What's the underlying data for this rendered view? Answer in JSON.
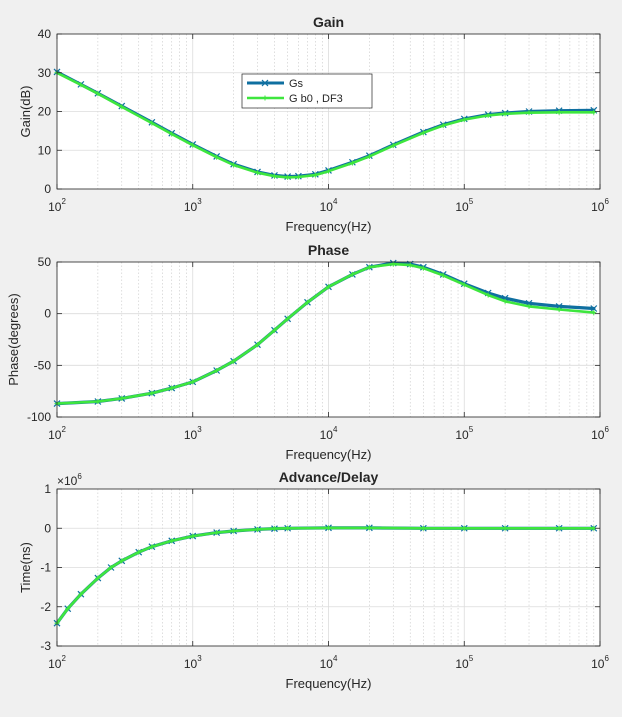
{
  "chart_data": [
    {
      "type": "line",
      "title": "Gain",
      "xlabel": "Frequency(Hz)",
      "ylabel": "Gain(dB)",
      "x_scale": "log",
      "xlim": [
        100,
        1000000
      ],
      "ylim": [
        0,
        40
      ],
      "yticks": [
        0,
        10,
        20,
        30,
        40
      ],
      "ytick_labels": [
        "0",
        "10",
        "20",
        "30",
        "40"
      ],
      "y_multiplier": "",
      "xtick_labels": [
        {
          "base": "10",
          "exp": "2"
        },
        {
          "base": "10",
          "exp": "3"
        },
        {
          "base": "10",
          "exp": "4"
        },
        {
          "base": "10",
          "exp": "5"
        },
        {
          "base": "10",
          "exp": "6"
        }
      ],
      "grid": true,
      "legend": "upper-center",
      "series": [
        {
          "name": "Gs",
          "color": "#0f6fa0",
          "marker": "x",
          "x": [
            100,
            150,
            200,
            300,
            500,
            700,
            1000,
            1500,
            2000,
            3000,
            4000,
            5000,
            6000,
            8000,
            10000,
            15000,
            20000,
            30000,
            50000,
            70000,
            100000,
            150000,
            200000,
            300000,
            500000,
            900000
          ],
          "y": [
            30.2,
            27.0,
            24.7,
            21.4,
            17.2,
            14.4,
            11.5,
            8.4,
            6.4,
            4.4,
            3.5,
            3.2,
            3.3,
            3.8,
            4.8,
            6.9,
            8.6,
            11.4,
            14.7,
            16.6,
            18.1,
            19.2,
            19.6,
            20.0,
            20.2,
            20.3
          ]
        },
        {
          "name": "G b0 , DF3",
          "color": "#3ee63e",
          "marker": "*",
          "x": [
            100,
            150,
            200,
            300,
            500,
            700,
            1000,
            1500,
            2000,
            3000,
            4000,
            5000,
            6000,
            8000,
            10000,
            15000,
            20000,
            30000,
            50000,
            70000,
            100000,
            150000,
            200000,
            300000,
            500000,
            900000
          ],
          "y": [
            30.0,
            26.9,
            24.6,
            21.2,
            17.0,
            14.2,
            11.3,
            8.2,
            6.2,
            4.2,
            3.3,
            3.0,
            3.1,
            3.6,
            4.6,
            6.7,
            8.4,
            11.2,
            14.5,
            16.4,
            17.9,
            19.0,
            19.4,
            19.7,
            19.8,
            19.8
          ]
        }
      ]
    },
    {
      "type": "line",
      "title": "Phase",
      "xlabel": "Frequency(Hz)",
      "ylabel": "Phase(degrees)",
      "x_scale": "log",
      "xlim": [
        100,
        1000000
      ],
      "ylim": [
        -100,
        50
      ],
      "yticks": [
        -100,
        -50,
        0,
        50
      ],
      "ytick_labels": [
        "-100",
        "-50",
        "0",
        "50"
      ],
      "y_multiplier": "",
      "xtick_labels": [
        {
          "base": "10",
          "exp": "2"
        },
        {
          "base": "10",
          "exp": "3"
        },
        {
          "base": "10",
          "exp": "4"
        },
        {
          "base": "10",
          "exp": "5"
        },
        {
          "base": "10",
          "exp": "6"
        }
      ],
      "grid": true,
      "legend": "none",
      "series": [
        {
          "name": "Gs",
          "color": "#0f6fa0",
          "marker": "x",
          "x": [
            100,
            200,
            300,
            500,
            700,
            1000,
            1500,
            2000,
            3000,
            4000,
            5000,
            7000,
            10000,
            15000,
            20000,
            30000,
            40000,
            50000,
            70000,
            100000,
            150000,
            200000,
            300000,
            500000,
            900000
          ],
          "y": [
            -87,
            -85,
            -82,
            -77,
            -72,
            -66,
            -55,
            -46,
            -30,
            -16,
            -5,
            11,
            26,
            38,
            45,
            49,
            48,
            45,
            38,
            29,
            20,
            15,
            10,
            7,
            5
          ]
        },
        {
          "name": "G b0 , DF3",
          "color": "#3ee63e",
          "marker": "*",
          "x": [
            100,
            200,
            300,
            500,
            700,
            1000,
            1500,
            2000,
            3000,
            4000,
            5000,
            7000,
            10000,
            15000,
            20000,
            30000,
            40000,
            50000,
            70000,
            100000,
            150000,
            200000,
            300000,
            500000,
            900000
          ],
          "y": [
            -87,
            -85,
            -82,
            -77,
            -72,
            -66,
            -55,
            -46,
            -30,
            -16,
            -5,
            11,
            26,
            38,
            45,
            48,
            47,
            44,
            37,
            28,
            18,
            12,
            7,
            4,
            1
          ]
        }
      ]
    },
    {
      "type": "line",
      "title": "Advance/Delay",
      "xlabel": "Frequency(Hz)",
      "ylabel": "Time(ns)",
      "x_scale": "log",
      "xlim": [
        100,
        1000000
      ],
      "ylim": [
        -3,
        1
      ],
      "yticks": [
        -3,
        -2,
        -1,
        0,
        1
      ],
      "ytick_labels": [
        "-3",
        "-2",
        "-1",
        "0",
        "1"
      ],
      "y_multiplier": {
        "base": "×10",
        "exp": "6"
      },
      "xtick_labels": [
        {
          "base": "10",
          "exp": "2"
        },
        {
          "base": "10",
          "exp": "3"
        },
        {
          "base": "10",
          "exp": "4"
        },
        {
          "base": "10",
          "exp": "5"
        },
        {
          "base": "10",
          "exp": "6"
        }
      ],
      "grid": true,
      "legend": "none",
      "series": [
        {
          "name": "Gs",
          "color": "#0f6fa0",
          "marker": "x",
          "x": [
            100,
            120,
            150,
            200,
            250,
            300,
            400,
            500,
            700,
            1000,
            1500,
            2000,
            3000,
            4000,
            5000,
            10000,
            20000,
            50000,
            100000,
            200000,
            500000,
            900000
          ],
          "y": [
            -2.42,
            -2.05,
            -1.68,
            -1.27,
            -1.0,
            -0.83,
            -0.61,
            -0.47,
            -0.32,
            -0.2,
            -0.11,
            -0.07,
            -0.03,
            -0.01,
            0.0,
            0.01,
            0.01,
            0.0,
            0.0,
            0.0,
            0.0,
            0.0
          ]
        },
        {
          "name": "G b0 , DF3",
          "color": "#3ee63e",
          "marker": "*",
          "x": [
            100,
            120,
            150,
            200,
            250,
            300,
            400,
            500,
            700,
            1000,
            1500,
            2000,
            3000,
            4000,
            5000,
            10000,
            20000,
            50000,
            100000,
            200000,
            500000,
            900000
          ],
          "y": [
            -2.42,
            -2.05,
            -1.68,
            -1.27,
            -1.0,
            -0.83,
            -0.61,
            -0.47,
            -0.32,
            -0.2,
            -0.11,
            -0.07,
            -0.03,
            -0.01,
            0.0,
            0.01,
            0.01,
            0.0,
            0.0,
            0.0,
            0.0,
            0.0
          ]
        }
      ]
    }
  ]
}
